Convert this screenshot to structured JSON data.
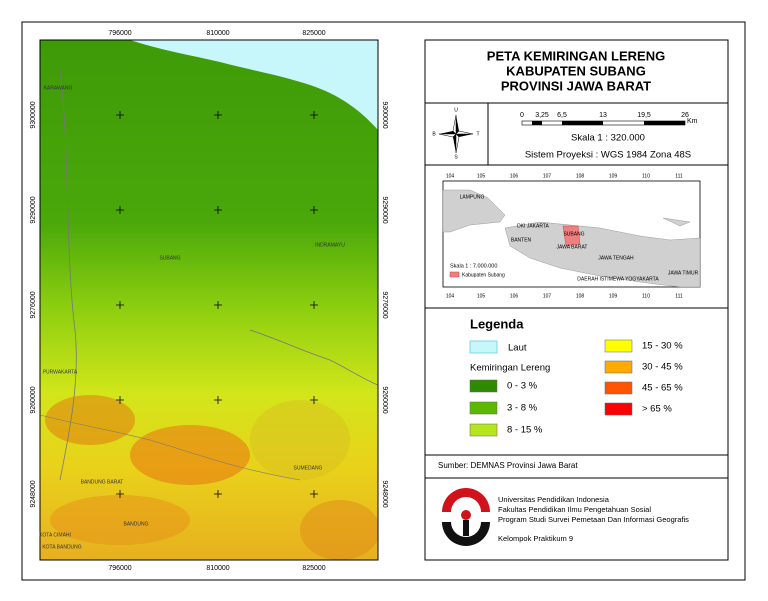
{
  "map": {
    "title_lines": [
      "PETA KEMIRINGAN LERENG",
      "KABUPATEN SUBANG",
      "PROVINSI JAWA BARAT"
    ],
    "eastings": [
      "796000",
      "810000",
      "825000"
    ],
    "northings": [
      "9300000",
      "9290000",
      "9276000",
      "9260000",
      "9248000"
    ],
    "place_labels": [
      "KARAWANG",
      "SUBANG",
      "INDRAMAYU",
      "PURWAKARTA",
      "BANDUNG BARAT",
      "SUMEDANG",
      "BANDUNG",
      "KOTA CIMAHI",
      "KOTA BANDUNG"
    ]
  },
  "north_arrow": {
    "n": "U",
    "s": "S",
    "w": "B",
    "e": "T"
  },
  "scale_bar": {
    "labels": [
      "0",
      "3,25",
      "6,5",
      "13",
      "19,5",
      "26"
    ],
    "unit": "Km"
  },
  "scale": "Skala   1 : 320.000",
  "projection": "Sistem Proyeksi : WGS 1984 Zona 48S",
  "inset": {
    "longitudes": [
      "104",
      "105",
      "106",
      "107",
      "108",
      "109",
      "110",
      "111"
    ],
    "labels": [
      "LAMPUNG",
      "DKI JAKARTA",
      "BANTEN",
      "SUBANG",
      "JAWA BARAT",
      "JAWA TENGAH",
      "JAWA TIMUR",
      "DAERAH ISTIMEWA YOGYAKARTA"
    ],
    "scale": "Skala  1 : 7.000.000",
    "legend": "Kabupaten Subang"
  },
  "legend": {
    "title": "Legenda",
    "sea": {
      "label": "Laut",
      "color": "#c8f7fb"
    },
    "slope_title": "Kemiringan Lereng",
    "classes": [
      {
        "label": "0 - 3 %",
        "color": "#2e8b00"
      },
      {
        "label": "3 - 8 %",
        "color": "#5cb800"
      },
      {
        "label": "8 - 15 %",
        "color": "#b5e61d"
      },
      {
        "label": "15 - 30 %",
        "color": "#ffff00"
      },
      {
        "label": "30 - 45 %",
        "color": "#ffaa00"
      },
      {
        "label": "45 - 65 %",
        "color": "#ff5500"
      },
      {
        "label": "> 65 %",
        "color": "#ff0000"
      }
    ]
  },
  "source": "Sumber: DEMNAS Provinsi Jawa Barat",
  "credits": [
    "Universitas Pendidikan Indonesia",
    "Fakultas Pendidikan Ilmu Pengetahuan Sosial",
    "Program Studi Survei Pemetaan Dan Informasi Geografis",
    "Kelompok Praktikum 9"
  ]
}
